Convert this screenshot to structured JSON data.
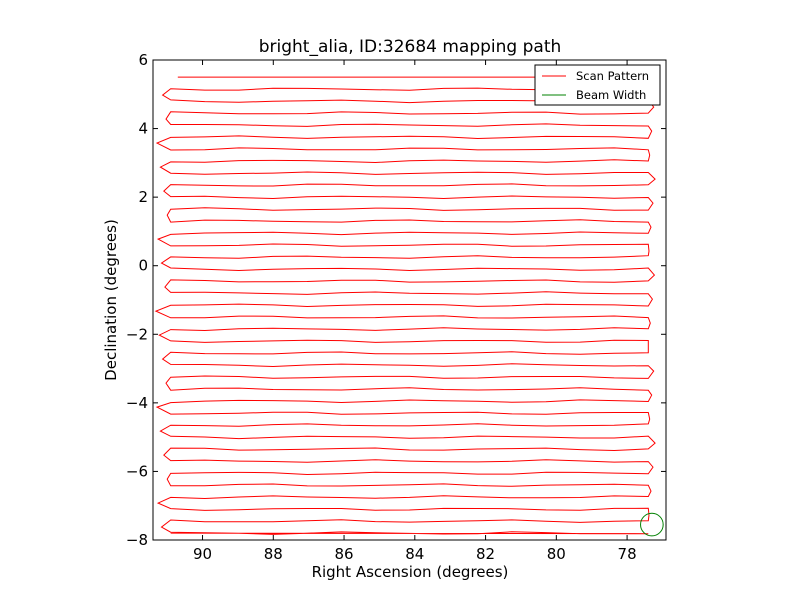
{
  "chart_data": {
    "type": "line",
    "title": "bright_alia, ID:32684 mapping path",
    "xlabel": "Right Ascension (degrees)",
    "ylabel": "Declination (degrees)",
    "xlim": [
      91.4,
      76.9
    ],
    "ylim": [
      -8,
      6
    ],
    "x_inverted": true,
    "xticks": [
      90,
      88,
      86,
      84,
      82,
      80,
      78
    ],
    "xtick_labels": [
      "90",
      "88",
      "86",
      "84",
      "82",
      "80",
      "78"
    ],
    "yticks": [
      -8,
      -6,
      -4,
      -2,
      0,
      2,
      4,
      6
    ],
    "ytick_labels": [
      "−8",
      "−6",
      "−4",
      "−2",
      "0",
      "2",
      "4",
      "6"
    ],
    "grid": false,
    "legend": {
      "placement": "top-right",
      "entries": [
        {
          "label": "Scan Pattern",
          "color": "#ff0000"
        },
        {
          "label": "Beam Width",
          "color": "#008000"
        }
      ]
    },
    "series": [
      {
        "name": "Scan Pattern",
        "color": "#ff0000",
        "pattern": "boustrophedon raster",
        "ra_east_edge": 77.4,
        "ra_west_edge": 90.9,
        "start": {
          "ra": 90.7,
          "dec": 5.5
        },
        "end": {
          "ra": 90.9,
          "dec": -7.8
        },
        "dec_rows": [
          5.5,
          5.15,
          4.8,
          4.45,
          4.1,
          3.75,
          3.4,
          3.05,
          2.7,
          2.35,
          2.0,
          1.65,
          1.3,
          0.95,
          0.6,
          0.25,
          -0.1,
          -0.45,
          -0.8,
          -1.15,
          -1.5,
          -1.85,
          -2.2,
          -2.55,
          -2.9,
          -3.25,
          -3.6,
          -3.95,
          -4.3,
          -4.65,
          -5.0,
          -5.35,
          -5.7,
          -6.05,
          -6.4,
          -6.75,
          -7.1,
          -7.45,
          -7.8
        ]
      },
      {
        "name": "Beam Width",
        "color": "#008000",
        "shape": "circle",
        "center": {
          "ra": 77.3,
          "dec": -7.55
        },
        "radius_deg": 0.33
      }
    ]
  }
}
